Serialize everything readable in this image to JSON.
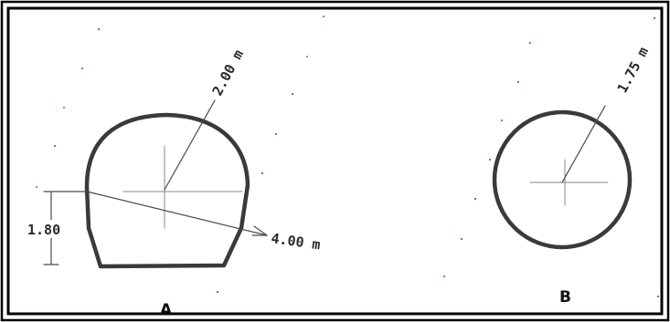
{
  "figure_a": {
    "label": "A",
    "radius_label": "2.00 m",
    "width_label": "4.00 m",
    "height_label": "1.80"
  },
  "figure_b": {
    "label": "B",
    "radius_label": "1.75 m"
  },
  "colors": {
    "frame": "#000000",
    "sketch": "#3a3a3a"
  }
}
